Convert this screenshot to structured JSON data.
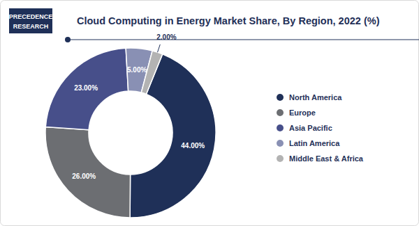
{
  "branding": {
    "line1": "PRECEDENCE",
    "line2": "RESEARCH"
  },
  "chart_data": {
    "type": "pie",
    "title": "Cloud Computing in Energy Market Share, By Region, 2022 (%)",
    "categories": [
      "North America",
      "Europe",
      "Asia Pacific",
      "Latin America",
      "Middle East & Africa"
    ],
    "values": [
      44,
      26,
      23,
      5,
      2
    ],
    "value_labels": [
      "44.00%",
      "26.00%",
      "23.00%",
      "5.00%",
      "2.00%"
    ],
    "colors": [
      "#1f3058",
      "#6c6e72",
      "#474f8a",
      "#8990b4",
      "#b3b3b3"
    ],
    "data_labels": true,
    "legend": "right"
  }
}
